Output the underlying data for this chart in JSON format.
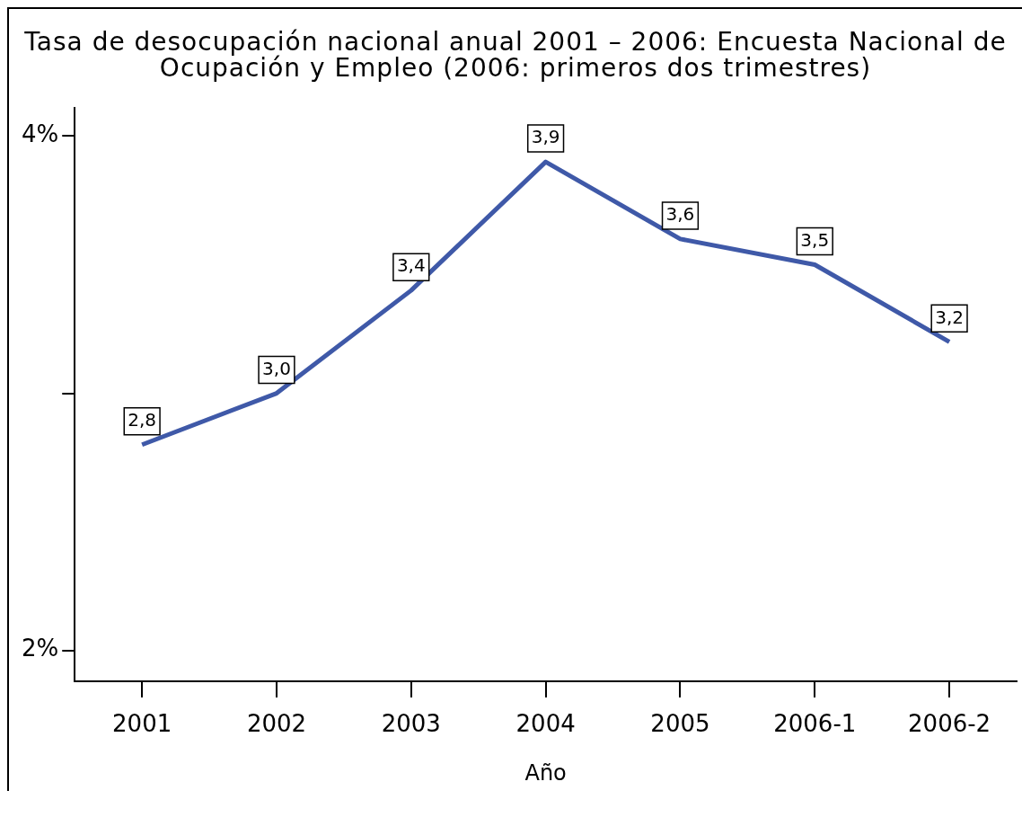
{
  "chart_data": {
    "type": "line",
    "title": "Tasa de desocupación nacional anual 2001 – 2006: Encuesta Nacional de Ocupación y Empleo (2006: primeros dos trimestres)",
    "xlabel": "Año",
    "categories": [
      "2001",
      "2002",
      "2003",
      "2004",
      "2005",
      "2006-1",
      "2006-2"
    ],
    "values": [
      2.8,
      3.0,
      3.4,
      3.9,
      3.6,
      3.5,
      3.2
    ],
    "color": "#3f59a8",
    "value_labels": [
      "2,8",
      "3,0",
      "3,4",
      "3,9",
      "3,6",
      "3,5",
      "3,2"
    ],
    "ylim": [
      1.88,
      4.11
    ],
    "yticks": [
      {
        "value": 2,
        "label": "2%"
      },
      {
        "value": 3,
        "label": null
      },
      {
        "value": 4,
        "label": "4%"
      }
    ],
    "marker": "none",
    "line_style": "solid"
  }
}
